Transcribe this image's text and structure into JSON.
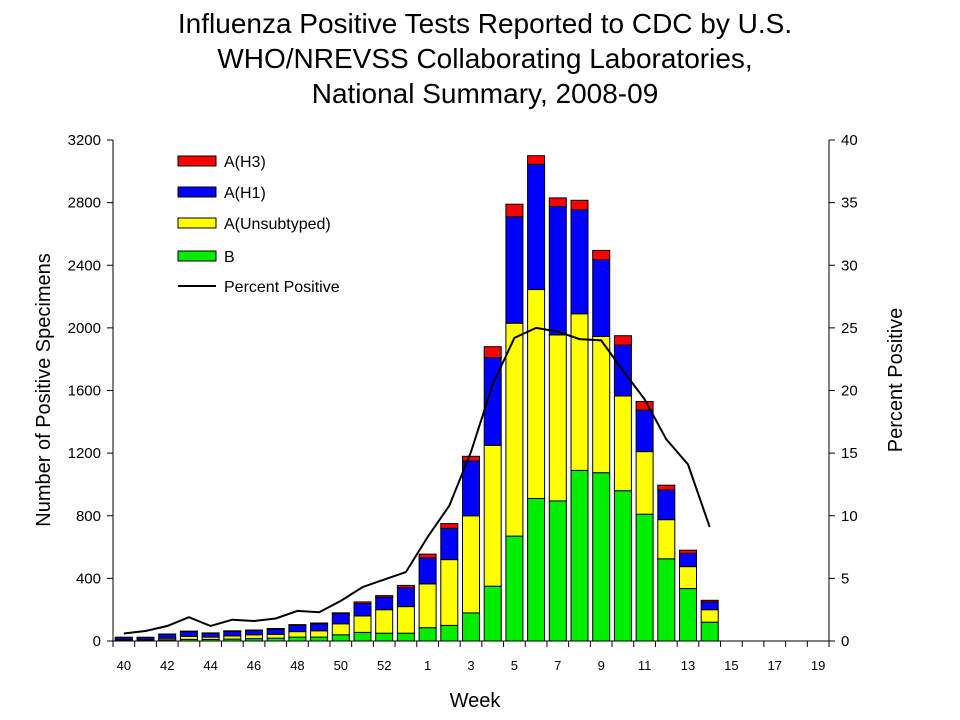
{
  "chart_data": {
    "type": "bar",
    "stacked": true,
    "title_lines": [
      "Influenza Positive Tests Reported to CDC by U.S.",
      "WHO/NREVSS Collaborating Laboratories,",
      "National Summary, 2008-09"
    ],
    "xlabel": "Week",
    "ylabel": "Number of Positive Specimens",
    "y2label": "Percent Positive",
    "ylim": [
      0,
      3200
    ],
    "y2lim": [
      0,
      40
    ],
    "yticks": [
      "0",
      "400",
      "800",
      "1200",
      "1600",
      "2000",
      "2400",
      "2800",
      "3200"
    ],
    "y2ticks": [
      "0",
      "5",
      "10",
      "15",
      "20",
      "25",
      "30",
      "35",
      "40"
    ],
    "weeks": [
      40,
      41,
      42,
      43,
      44,
      45,
      46,
      47,
      48,
      49,
      50,
      51,
      52,
      1,
      2,
      3,
      4,
      5,
      6,
      7,
      8,
      9,
      10,
      11,
      12,
      13,
      14,
      15,
      16,
      17,
      18,
      19,
      20
    ],
    "xtick_labels": [
      "40",
      "42",
      "44",
      "46",
      "48",
      "50",
      "52",
      "1",
      "3",
      "5",
      "7",
      "9",
      "11",
      "13",
      "15",
      "17",
      "19"
    ],
    "grid": false,
    "legend_position": "top-left",
    "series": [
      {
        "name": "B",
        "color": "#00ee00",
        "values": [
          5,
          5,
          8,
          10,
          10,
          12,
          15,
          18,
          25,
          25,
          40,
          55,
          50,
          50,
          85,
          100,
          180,
          350,
          670,
          910,
          895,
          1090,
          1075,
          960,
          810,
          525,
          335,
          120,
          0,
          0,
          0,
          0,
          0
        ]
      },
      {
        "name": "A(Unsubtyped)",
        "color": "#ffff00",
        "values": [
          5,
          5,
          10,
          20,
          15,
          20,
          25,
          25,
          35,
          40,
          70,
          105,
          150,
          170,
          280,
          420,
          620,
          900,
          1360,
          1335,
          1060,
          1000,
          870,
          605,
          400,
          250,
          140,
          80,
          0,
          0,
          0,
          0,
          0
        ]
      },
      {
        "name": "A(H1)",
        "color": "#0000ff",
        "values": [
          12,
          12,
          25,
          30,
          25,
          30,
          28,
          32,
          40,
          45,
          65,
          80,
          80,
          120,
          165,
          200,
          350,
          560,
          680,
          800,
          820,
          665,
          490,
          325,
          265,
          190,
          85,
          50,
          0,
          0,
          0,
          0,
          0
        ]
      },
      {
        "name": "A(H3)",
        "color": "#ff0000",
        "values": [
          2,
          2,
          2,
          3,
          2,
          3,
          2,
          5,
          5,
          5,
          5,
          10,
          10,
          15,
          25,
          30,
          30,
          70,
          80,
          55,
          55,
          60,
          60,
          60,
          55,
          30,
          20,
          10,
          0,
          0,
          0,
          0,
          0
        ]
      }
    ],
    "line_series": {
      "name": "Percent Positive",
      "color": "#000000",
      "axis": "right",
      "values": [
        0.6,
        0.8,
        1.2,
        1.9,
        1.2,
        1.7,
        1.6,
        1.8,
        2.4,
        2.3,
        3.2,
        4.3,
        4.9,
        5.5,
        8.3,
        10.8,
        15.1,
        20.5,
        24.2,
        25.0,
        24.7,
        24.1,
        24.0,
        21.6,
        19.3,
        16.1,
        14.1,
        9.1
      ]
    }
  },
  "legend": {
    "items": [
      {
        "label": "A(H3)",
        "color": "#ff0000",
        "kind": "box"
      },
      {
        "label": "A(H1)",
        "color": "#0000ff",
        "kind": "box"
      },
      {
        "label": "A(Unsubtyped)",
        "color": "#ffff00",
        "kind": "box"
      },
      {
        "label": "B",
        "color": "#00ee00",
        "kind": "box"
      },
      {
        "label": "Percent Positive",
        "color": "#000000",
        "kind": "line"
      }
    ]
  }
}
